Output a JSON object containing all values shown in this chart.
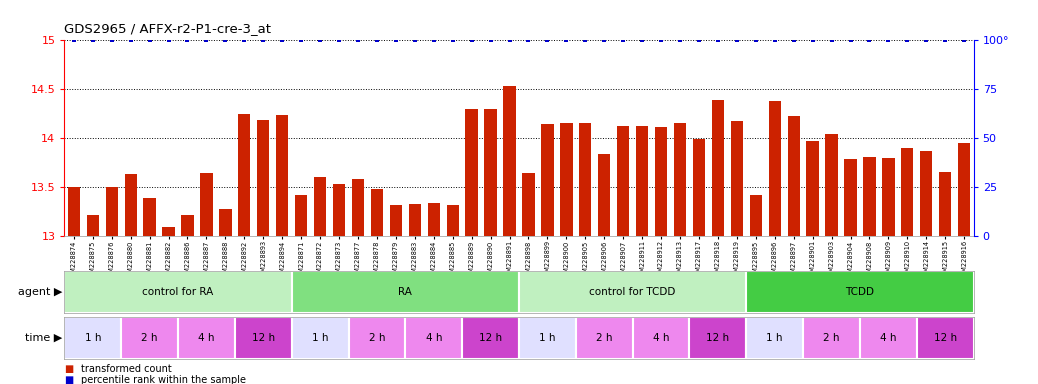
{
  "title": "GDS2965 / AFFX-r2-P1-cre-3_at",
  "bar_values": [
    13.5,
    13.22,
    13.5,
    13.63,
    13.39,
    13.09,
    13.22,
    13.65,
    13.28,
    14.25,
    14.19,
    14.24,
    13.42,
    13.6,
    13.53,
    13.58,
    13.48,
    13.32,
    13.33,
    13.34,
    13.32,
    14.3,
    14.3,
    14.53,
    13.65,
    14.15,
    14.16,
    14.16,
    13.84,
    14.12,
    14.12,
    14.11,
    14.16,
    13.99,
    14.39,
    14.18,
    13.42,
    14.38,
    14.23,
    13.97,
    14.04,
    13.79,
    13.81,
    13.8,
    13.9,
    13.87,
    13.66,
    13.95
  ],
  "percentile_values": [
    100,
    100,
    100,
    100,
    100,
    100,
    100,
    100,
    100,
    100,
    100,
    100,
    100,
    100,
    100,
    100,
    100,
    100,
    100,
    100,
    100,
    100,
    100,
    100,
    100,
    100,
    100,
    100,
    100,
    100,
    100,
    100,
    100,
    100,
    100,
    100,
    100,
    100,
    100,
    100,
    100,
    100,
    100,
    100,
    100,
    100,
    100,
    100
  ],
  "sample_labels": [
    "GSM228874",
    "GSM228875",
    "GSM228876",
    "GSM228880",
    "GSM228881",
    "GSM228882",
    "GSM228886",
    "GSM228887",
    "GSM228888",
    "GSM228892",
    "GSM228893",
    "GSM228894",
    "GSM228871",
    "GSM228872",
    "GSM228873",
    "GSM228877",
    "GSM228878",
    "GSM228879",
    "GSM228883",
    "GSM228884",
    "GSM228885",
    "GSM228889",
    "GSM228890",
    "GSM228891",
    "GSM228898",
    "GSM228899",
    "GSM228900",
    "GSM228905",
    "GSM228906",
    "GSM228907",
    "GSM228911",
    "GSM228912",
    "GSM228913",
    "GSM228917",
    "GSM228918",
    "GSM228919",
    "GSM228895",
    "GSM228896",
    "GSM228897",
    "GSM228901",
    "GSM228903",
    "GSM228904",
    "GSM228908",
    "GSM228909",
    "GSM228910",
    "GSM228914",
    "GSM228915",
    "GSM228916"
  ],
  "agent_groups": [
    {
      "label": "control for RA",
      "start": 0,
      "end": 12,
      "color": "#c0f0c0"
    },
    {
      "label": "RA",
      "start": 12,
      "end": 24,
      "color": "#80e080"
    },
    {
      "label": "control for TCDD",
      "start": 24,
      "end": 36,
      "color": "#c0f0c0"
    },
    {
      "label": "TCDD",
      "start": 36,
      "end": 48,
      "color": "#44cc44"
    }
  ],
  "time_groups": [
    {
      "label": "1 h",
      "start": 0,
      "end": 3,
      "color": "#e0e0ff"
    },
    {
      "label": "2 h",
      "start": 3,
      "end": 6,
      "color": "#ee88ee"
    },
    {
      "label": "4 h",
      "start": 6,
      "end": 9,
      "color": "#ee88ee"
    },
    {
      "label": "12 h",
      "start": 9,
      "end": 12,
      "color": "#cc44cc"
    },
    {
      "label": "1 h",
      "start": 12,
      "end": 15,
      "color": "#e0e0ff"
    },
    {
      "label": "2 h",
      "start": 15,
      "end": 18,
      "color": "#ee88ee"
    },
    {
      "label": "4 h",
      "start": 18,
      "end": 21,
      "color": "#ee88ee"
    },
    {
      "label": "12 h",
      "start": 21,
      "end": 24,
      "color": "#cc44cc"
    },
    {
      "label": "1 h",
      "start": 24,
      "end": 27,
      "color": "#e0e0ff"
    },
    {
      "label": "2 h",
      "start": 27,
      "end": 30,
      "color": "#ee88ee"
    },
    {
      "label": "4 h",
      "start": 30,
      "end": 33,
      "color": "#ee88ee"
    },
    {
      "label": "12 h",
      "start": 33,
      "end": 36,
      "color": "#cc44cc"
    },
    {
      "label": "1 h",
      "start": 36,
      "end": 39,
      "color": "#e0e0ff"
    },
    {
      "label": "2 h",
      "start": 39,
      "end": 42,
      "color": "#ee88ee"
    },
    {
      "label": "4 h",
      "start": 42,
      "end": 45,
      "color": "#ee88ee"
    },
    {
      "label": "12 h",
      "start": 45,
      "end": 48,
      "color": "#cc44cc"
    }
  ],
  "bar_color": "#cc2200",
  "percentile_color": "#0000cc",
  "ylim_left": [
    13.0,
    15.0
  ],
  "ylim_right": [
    0,
    100
  ],
  "yticks_left": [
    13.0,
    13.5,
    14.0,
    14.5,
    15.0
  ],
  "yticks_right": [
    0,
    25,
    50,
    75,
    100
  ],
  "legend_items": [
    {
      "label": "transformed count",
      "color": "#cc2200"
    },
    {
      "label": "percentile rank within the sample",
      "color": "#0000cc"
    }
  ]
}
